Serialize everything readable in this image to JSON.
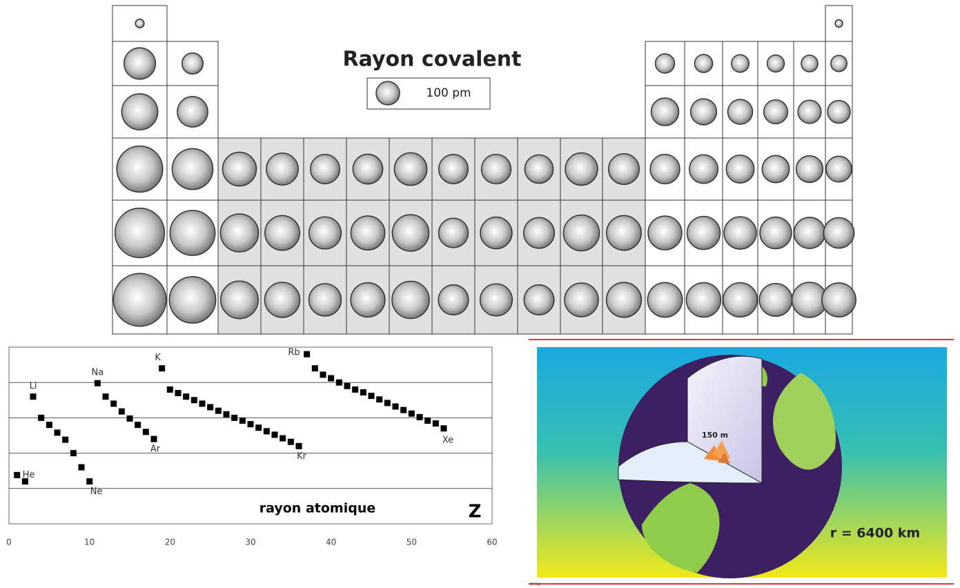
{
  "chart_data": [
    {
      "type": "periodic-bubbles",
      "title": "Rayon covalent",
      "legend_key": {
        "value": 100,
        "label": "100 pm"
      },
      "cell_color": "#ffffff",
      "block_color": "#e0e0e0",
      "cells": [
        [
          37,
          null,
          null,
          null,
          null,
          null,
          null,
          null,
          null,
          null,
          null,
          null,
          null,
          null,
          null,
          null,
          null,
          32
        ],
        [
          134,
          90,
          null,
          null,
          null,
          null,
          null,
          null,
          null,
          null,
          null,
          null,
          82,
          77,
          75,
          73,
          71,
          69
        ],
        [
          154,
          130,
          null,
          null,
          null,
          null,
          null,
          null,
          null,
          null,
          null,
          null,
          118,
          111,
          106,
          102,
          99,
          97
        ],
        [
          196,
          174,
          144,
          136,
          125,
          127,
          139,
          125,
          126,
          121,
          138,
          131,
          126,
          122,
          119,
          116,
          114,
          110
        ],
        [
          211,
          192,
          162,
          148,
          137,
          145,
          156,
          126,
          135,
          131,
          153,
          148,
          144,
          141,
          138,
          135,
          133,
          130
        ],
        [
          225,
          198,
          160,
          150,
          138,
          146,
          159,
          128,
          137,
          128,
          144,
          149,
          148,
          147,
          146,
          140,
          150,
          145
        ]
      ]
    },
    {
      "type": "scatter",
      "color": "#000000",
      "x": [
        1,
        2,
        3,
        4,
        5,
        6,
        7,
        8,
        9,
        10,
        11,
        12,
        13,
        14,
        15,
        16,
        17,
        18,
        19,
        20,
        21,
        22,
        23,
        24,
        25,
        26,
        27,
        28,
        29,
        30,
        31,
        32,
        33,
        34,
        35,
        36,
        37,
        38,
        39,
        40,
        41,
        42,
        43,
        44,
        45,
        46,
        47,
        48,
        49,
        50,
        51,
        52,
        53,
        54
      ],
      "values": [
        69,
        60,
        180,
        150,
        140,
        129,
        119,
        100,
        80,
        60,
        199,
        180,
        170,
        159,
        149,
        140,
        130,
        120,
        220,
        190,
        185,
        180,
        175,
        170,
        165,
        160,
        155,
        150,
        146,
        141,
        136,
        131,
        126,
        121,
        116,
        110,
        240,
        220,
        211,
        206,
        200,
        195,
        190,
        186,
        181,
        176,
        171,
        166,
        161,
        156,
        151,
        146,
        142,
        135
      ],
      "point_labels": [
        "He",
        null,
        "Li",
        null,
        null,
        null,
        null,
        null,
        null,
        "Ne",
        "Na",
        null,
        null,
        null,
        null,
        null,
        null,
        "Ar",
        "K",
        null,
        null,
        null,
        null,
        null,
        null,
        null,
        null,
        null,
        null,
        null,
        null,
        null,
        null,
        null,
        null,
        "Kr",
        "Rb",
        null,
        null,
        null,
        null,
        null,
        null,
        null,
        null,
        null,
        null,
        null,
        null,
        null,
        null,
        null,
        null,
        "Xe"
      ],
      "xlabel": "rayon atomique",
      "corner_label": "Z",
      "xlim": [
        0,
        60
      ],
      "xticks": [
        0,
        10,
        20,
        30,
        40,
        50,
        60
      ],
      "ylim": [
        0,
        250
      ],
      "yticks": [
        50,
        100,
        150,
        200
      ],
      "grid": true
    }
  ],
  "illustration": {
    "depth_label": "150 m",
    "radius_label": "r = 6400 km",
    "code": "M 04"
  }
}
